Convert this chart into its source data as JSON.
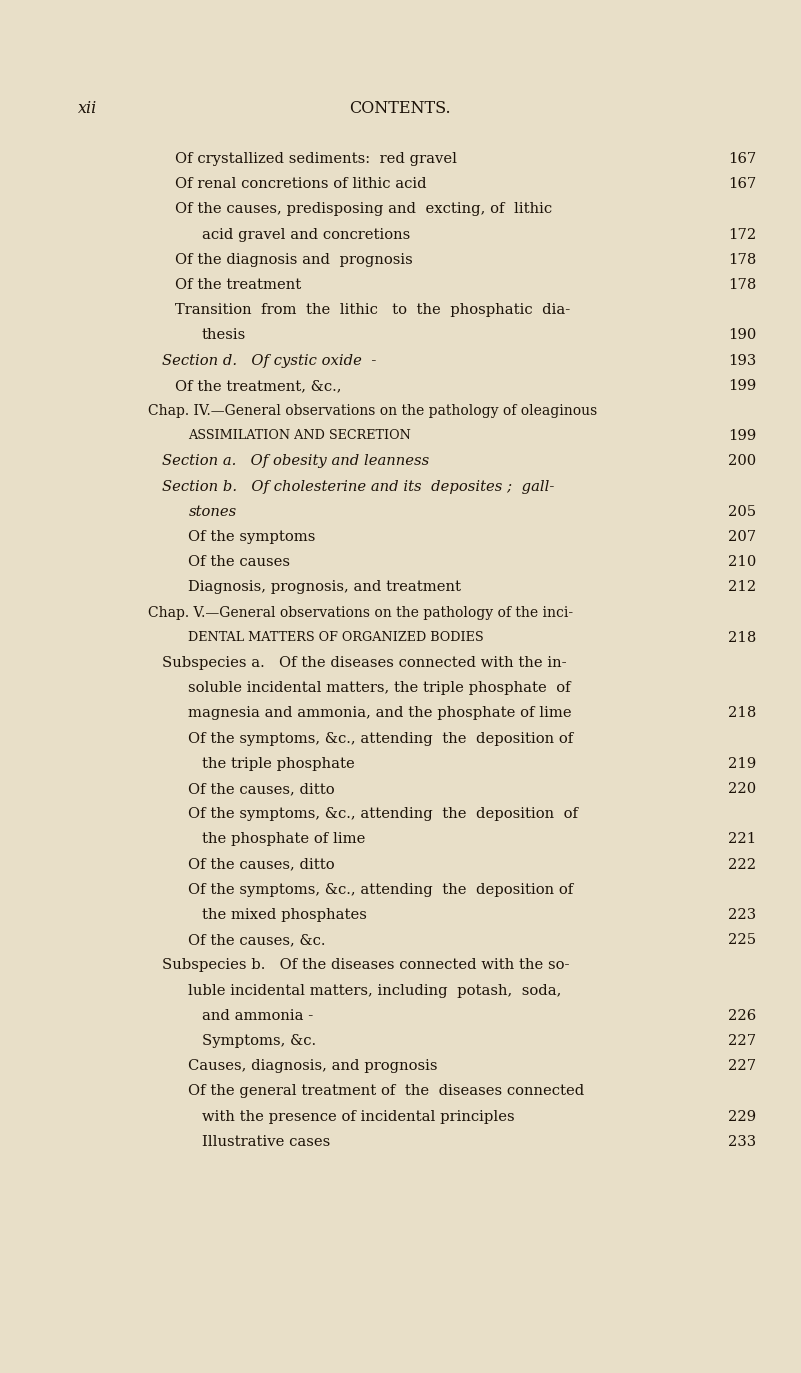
{
  "bg_color": "#e8dfc8",
  "text_color": "#1c1208",
  "page_label": "xii",
  "header": "CONTENTS.",
  "lines": [
    {
      "text": "Of crystallized sediments:  red gravel",
      "indent": 1,
      "page": "167",
      "style": "normal",
      "dashes": "- - "
    },
    {
      "text": "Of renal concretions of lithic acid",
      "indent": 1,
      "page": "167",
      "style": "normal",
      "dashes": "- - "
    },
    {
      "text": "Of the causes, predisposing and  excting, of  lithic",
      "indent": 1,
      "page": null,
      "style": "normal",
      "dashes": null
    },
    {
      "text": "acid gravel and concretions",
      "indent": 2,
      "page": "172",
      "style": "normal",
      "dashes": "- - - "
    },
    {
      "text": "Of the diagnosis and  prognosis",
      "indent": 1,
      "page": "178",
      "style": "normal",
      "dashes": "- - - "
    },
    {
      "text": "Of the treatment",
      "indent": 1,
      "page": "178",
      "style": "normal",
      "dashes": "- - - - "
    },
    {
      "text": "Transition  from  the  lithic   to  the  phosphatic  dia-",
      "indent": 1,
      "page": null,
      "style": "normal",
      "dashes": null
    },
    {
      "text": "thesis",
      "indent": 2,
      "page": "190",
      "style": "normal",
      "dashes": "- - - - - "
    },
    {
      "text": "Section d.   Of cystic oxide  -",
      "indent": 0.5,
      "page": "193",
      "style": "section",
      "dashes": "- - - - "
    },
    {
      "text": "Of the treatment, &c.,",
      "indent": 1,
      "page": "199",
      "style": "normal",
      "dashes": "- - - - "
    },
    {
      "text": "Chap. IV.—General observations on the pathology of oleaginous",
      "indent": 0,
      "page": null,
      "style": "chap",
      "dashes": null
    },
    {
      "text": "assimilation and secretion",
      "indent": 1.5,
      "page": "199",
      "style": "smallcaps",
      "dashes": "- - - "
    },
    {
      "text": "Section a.   Of obesity and leanness",
      "indent": 0.5,
      "page": "200",
      "style": "section",
      "dashes": "- - "
    },
    {
      "text": "Section b.   Of cholesterine and its  deposites ;  gall-",
      "indent": 0.5,
      "page": null,
      "style": "section",
      "dashes": null
    },
    {
      "text": "stones",
      "indent": 1.5,
      "page": "205",
      "style": "italic",
      "dashes": "- - - - - - "
    },
    {
      "text": "Of the symptoms",
      "indent": 1.5,
      "page": "207",
      "style": "normal",
      "dashes": "- - - - "
    },
    {
      "text": "Of the causes",
      "indent": 1.5,
      "page": "210",
      "style": "normal",
      "dashes": "- - - - - "
    },
    {
      "text": "Diagnosis, prognosis, and treatment",
      "indent": 1.5,
      "page": "212",
      "style": "normal",
      "dashes": "- - "
    },
    {
      "text": "Chap. V.—General observations on the pathology of the inci-",
      "indent": 0,
      "page": null,
      "style": "chap",
      "dashes": null
    },
    {
      "text": "dental matters of organized bodies",
      "indent": 1.5,
      "page": "218",
      "style": "smallcaps",
      "dashes": "- - "
    },
    {
      "text": "Subspecies a.   Of the diseases connected with the in-",
      "indent": 0.5,
      "page": null,
      "style": "normal",
      "dashes": null
    },
    {
      "text": "soluble incidental matters, the triple phosphate  of",
      "indent": 1.5,
      "page": null,
      "style": "normal",
      "dashes": null
    },
    {
      "text": "magnesia and ammonia, and the phosphate of lime",
      "indent": 1.5,
      "page": "218",
      "style": "normal",
      "dashes": null
    },
    {
      "text": "Of the symptoms, &c., attending  the  deposition of",
      "indent": 1.5,
      "page": null,
      "style": "normal",
      "dashes": null
    },
    {
      "text": "the triple phosphate",
      "indent": 2,
      "page": "219",
      "style": "normal",
      "dashes": "- - - - "
    },
    {
      "text": "Of the causes, ditto",
      "indent": 1.5,
      "page": "220",
      "style": "normal",
      "dashes": "- - - - "
    },
    {
      "text": "Of the symptoms, &c., attending  the  deposition  of",
      "indent": 1.5,
      "page": null,
      "style": "normal",
      "dashes": null
    },
    {
      "text": "the phosphate of lime",
      "indent": 2,
      "page": "221",
      "style": "normal",
      "dashes": "- - - "
    },
    {
      "text": "Of the causes, ditto",
      "indent": 1.5,
      "page": "222",
      "style": "normal",
      "dashes": "- - - - "
    },
    {
      "text": "Of the symptoms, &c., attending  the  deposition of",
      "indent": 1.5,
      "page": null,
      "style": "normal",
      "dashes": null
    },
    {
      "text": "the mixed phosphates",
      "indent": 2,
      "page": "223",
      "style": "normal",
      "dashes": "- - - "
    },
    {
      "text": "Of the causes, &c.",
      "indent": 1.5,
      "page": "225",
      "style": "normal",
      "dashes": "- - - - "
    },
    {
      "text": "Subspecies b.   Of the diseases connected with the so-",
      "indent": 0.5,
      "page": null,
      "style": "normal",
      "dashes": null
    },
    {
      "text": "luble incidental matters, including  potash,  soda,",
      "indent": 1.5,
      "page": null,
      "style": "normal",
      "dashes": null
    },
    {
      "text": "and ammonia -",
      "indent": 2,
      "page": "226",
      "style": "normal",
      "dashes": "- - - - "
    },
    {
      "text": "Symptoms, &c.",
      "indent": 2,
      "page": "227",
      "style": "normal",
      "dashes": "- - - - "
    },
    {
      "text": "Causes, diagnosis, and prognosis",
      "indent": 1.5,
      "page": "227",
      "style": "normal",
      "dashes": "- - "
    },
    {
      "text": "Of the general treatment of  the  diseases connected",
      "indent": 1.5,
      "page": null,
      "style": "normal",
      "dashes": null
    },
    {
      "text": "with the presence of incidental principles",
      "indent": 2,
      "page": "229",
      "style": "normal",
      "dashes": "- "
    },
    {
      "text": "Illustrative cases",
      "indent": 2,
      "page": "233",
      "style": "normal",
      "dashes": "- - - - "
    }
  ]
}
